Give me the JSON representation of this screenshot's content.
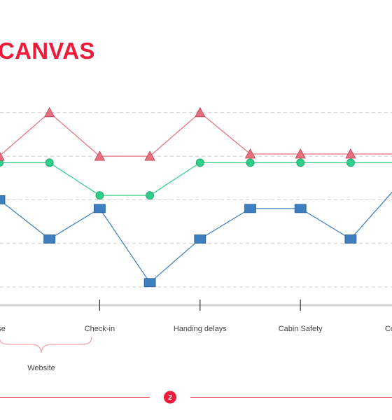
{
  "slide": {
    "title": "CANVAS",
    "page_number": "2",
    "bracket_label": "Website"
  },
  "colors": {
    "accent": "#ec1c3a",
    "triangle_series": "#e8707e",
    "circle_series": "#2ecf8a",
    "square_series": "#3d7fc0",
    "grid": "#cccccc",
    "axis": "#d4d4d4",
    "footer_line": "#ec1c3a"
  },
  "chart_data": {
    "type": "line",
    "categories": [
      "use",
      "",
      "Check-in",
      "",
      "Handing delays",
      "",
      "Cabin Safety",
      "",
      "Cockpit c"
    ],
    "series": [
      {
        "marker": "triangle",
        "values": [
          3.0,
          4.0,
          3.0,
          3.0,
          4.0,
          3.05,
          3.05,
          3.05,
          3.05
        ]
      },
      {
        "marker": "circle",
        "values": [
          2.85,
          2.85,
          2.1,
          2.1,
          2.85,
          2.85,
          2.85,
          2.85,
          2.85
        ]
      },
      {
        "marker": "square",
        "values": [
          2.0,
          1.1,
          1.8,
          0.1,
          1.1,
          1.8,
          1.8,
          1.1,
          2.4
        ]
      }
    ],
    "gridlines": [
      0,
      1,
      2,
      3,
      4
    ],
    "ylim": [
      0,
      4
    ],
    "grid": "dashed horizontal",
    "legend": "none"
  }
}
